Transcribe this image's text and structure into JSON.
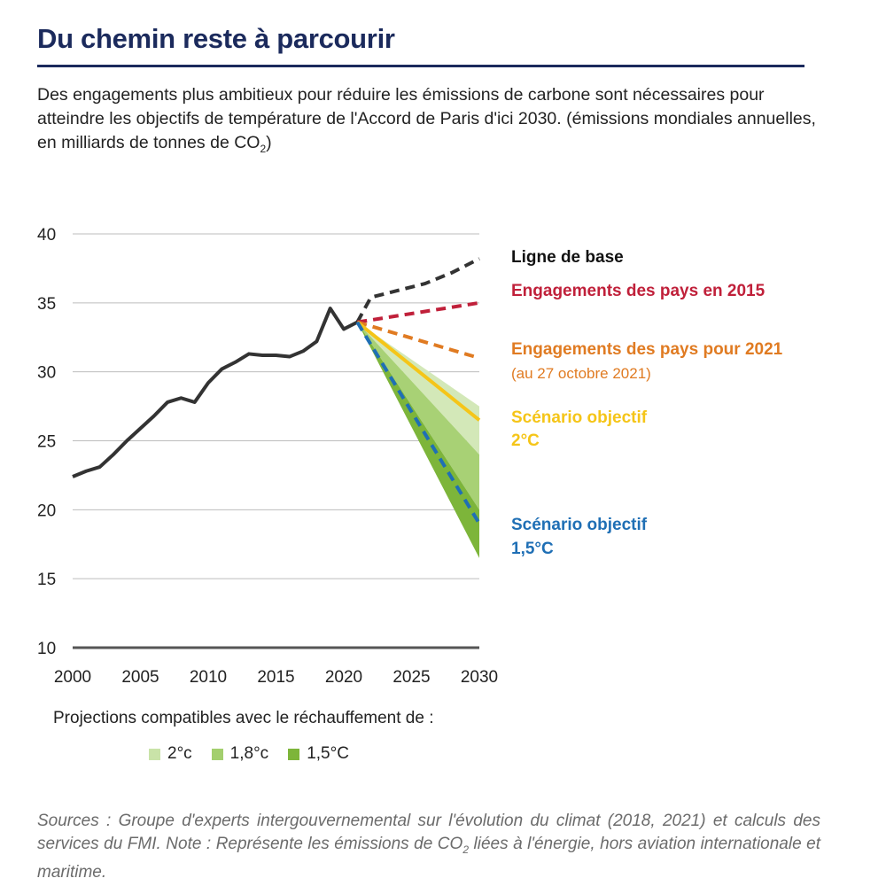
{
  "header": {
    "title": "Du chemin reste à parcourir",
    "subtitle_main": "Des engagements plus ambitieux pour réduire les émissions de carbone sont nécessaires pour atteindre les objectifs de température de l'Accord de Paris d'ici 2030. (émissions mondiales annuelles, en milliards de tonnes de CO",
    "subtitle_sub": "2",
    "subtitle_end": ")"
  },
  "legend": {
    "caption": "Projections compatibles avec le réchauffement de :",
    "items": [
      {
        "label": "2°c",
        "color": "#c9e3a8"
      },
      {
        "label": "1,8°c",
        "color": "#a3cf6e"
      },
      {
        "label": "1,5°C",
        "color": "#7db53a"
      }
    ]
  },
  "footer": {
    "source_part1": "Sources : Groupe d'experts intergouvernemental sur l'évolution du climat (2018, 2021) et calculs des services du FMI. Note : Représente les émissions de CO",
    "source_sub": "2",
    "source_part2": " liées à l'énergie, hors aviation internationale et maritime."
  },
  "labels": {
    "baseline": "Ligne de base",
    "pledges2015": "Engagements des pays en 2015",
    "pledges2021": "Engagements des pays pour 2021",
    "pledges2021_note": "(au 27 octobre 2021)",
    "scen2_line1": "Scénario objectif",
    "scen2_line2": "2°C",
    "scen15_line1": "Scénario objectif",
    "scen15_line2": "1,5°C"
  },
  "chart_data": {
    "type": "line",
    "xlim": [
      2000,
      2030
    ],
    "ylim": [
      10,
      40
    ],
    "x_ticks": [
      2000,
      2005,
      2010,
      2015,
      2020,
      2025,
      2030
    ],
    "y_ticks": [
      10,
      15,
      20,
      25,
      30,
      35,
      40
    ],
    "grid": true,
    "colors": {
      "historical": "#333333",
      "baseline": "#333333",
      "pledges2015": "#c0203a",
      "pledges2021": "#e07b22",
      "scen2": "#f5c518",
      "scen15": "#1f6fb5",
      "band2": "#d3e8b8",
      "band18": "#a8d175",
      "band15": "#7db53a"
    },
    "historical": {
      "x": [
        2000,
        2001,
        2002,
        2003,
        2004,
        2005,
        2006,
        2007,
        2008,
        2009,
        2010,
        2011,
        2012,
        2013,
        2014,
        2015,
        2016,
        2017,
        2018,
        2019,
        2020,
        2021
      ],
      "y": [
        22.4,
        22.8,
        23.1,
        24.0,
        25.0,
        25.9,
        26.8,
        27.8,
        28.1,
        27.8,
        29.2,
        30.2,
        30.7,
        31.3,
        31.2,
        31.2,
        31.1,
        31.5,
        32.2,
        34.6,
        33.1,
        33.6
      ]
    },
    "series": [
      {
        "name": "Ligne de base",
        "x": [
          2021,
          2022,
          2024,
          2026,
          2028,
          2030
        ],
        "y": [
          33.6,
          35.4,
          35.9,
          36.4,
          37.2,
          38.2
        ]
      },
      {
        "name": "Engagements des pays en 2015",
        "x": [
          2021,
          2030
        ],
        "y": [
          33.6,
          35.0
        ]
      },
      {
        "name": "Engagements des pays pour 2021",
        "x": [
          2021,
          2030
        ],
        "y": [
          33.6,
          31.0
        ]
      },
      {
        "name": "Scénario objectif 2°C",
        "x": [
          2021,
          2030
        ],
        "y": [
          33.6,
          26.5
        ]
      },
      {
        "name": "Scénario objectif 1,5°C",
        "x": [
          2021,
          2030
        ],
        "y": [
          33.6,
          19.0
        ]
      }
    ],
    "bands": [
      {
        "name": "2°c",
        "x": [
          2021,
          2030
        ],
        "upper": [
          33.6,
          27.5
        ],
        "lower": [
          33.6,
          24.0
        ]
      },
      {
        "name": "1,8°c",
        "x": [
          2021,
          2030
        ],
        "upper": [
          33.6,
          24.0
        ],
        "lower": [
          33.6,
          20.0
        ]
      },
      {
        "name": "1,5°C",
        "x": [
          2021,
          2030
        ],
        "upper": [
          33.6,
          20.0
        ],
        "lower": [
          33.6,
          16.5
        ]
      }
    ]
  }
}
